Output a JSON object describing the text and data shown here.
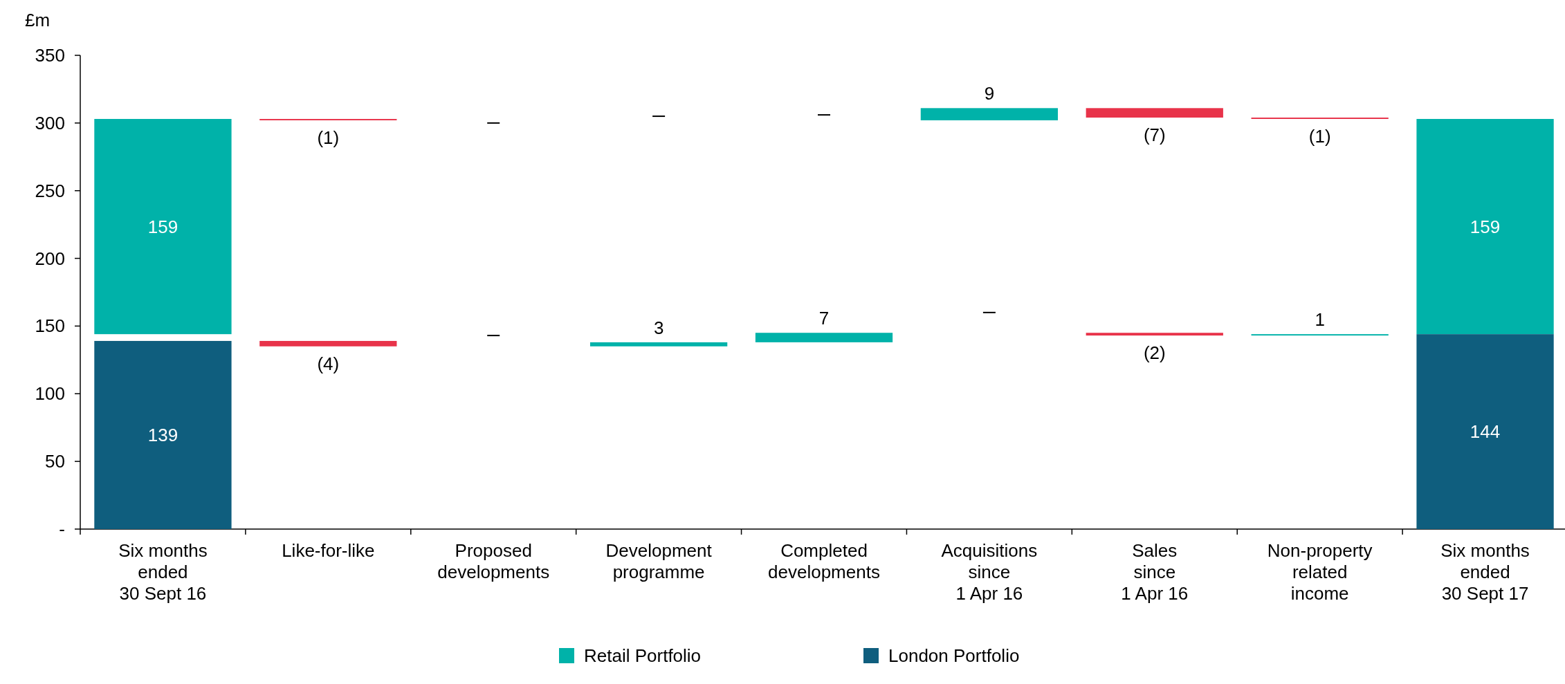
{
  "chart_data": {
    "type": "bar",
    "ylabel": "£m",
    "categories": [
      "Six months\nended\n30 Sept 16",
      "Like-for-like",
      "Proposed\ndevelopments",
      "Development\nprogramme",
      "Completed\ndevelopments",
      "Acquisitions\nsince\n1 Apr 16",
      "Sales\nsince\n1 Apr 16",
      "Non-property\nrelated\nincome",
      "Six months\nended\n30 Sept 17"
    ],
    "series": [
      {
        "name": "Retail Portfolio",
        "color": "#00b2a9",
        "base": [
          144,
          303,
          300,
          305,
          306,
          302,
          311,
          304,
          144
        ],
        "values": [
          159,
          -1,
          0,
          0,
          0,
          9,
          -7,
          -1,
          159
        ],
        "colors": [
          "#00b2a9",
          "#e8334a",
          "#000000",
          "#000000",
          "#000000",
          "#00b2a9",
          "#e8334a",
          "#e8334a",
          "#00b2a9"
        ],
        "value_labels": [
          "159",
          "(1)",
          null,
          null,
          null,
          "9",
          "(7)",
          "(1)",
          "159"
        ]
      },
      {
        "name": "London Portfolio",
        "color": "#0f5e7e",
        "base": [
          0,
          139,
          143,
          135,
          138,
          160,
          145,
          143,
          0
        ],
        "values": [
          139,
          -4,
          0,
          3,
          7,
          0,
          -2,
          1,
          144
        ],
        "colors": [
          "#0f5e7e",
          "#e8334a",
          "#000000",
          "#00b2a9",
          "#00b2a9",
          "#000000",
          "#e8334a",
          "#00b2a9",
          "#0f5e7e"
        ],
        "value_labels": [
          "139",
          "(4)",
          null,
          "3",
          "7",
          null,
          "(2)",
          "1",
          "144"
        ]
      }
    ],
    "ylim": [
      0,
      350
    ],
    "yticks": [
      {
        "value": 0,
        "label": "-"
      },
      50,
      100,
      150,
      200,
      250,
      300,
      350
    ],
    "grid": false,
    "legend": "bottom"
  }
}
